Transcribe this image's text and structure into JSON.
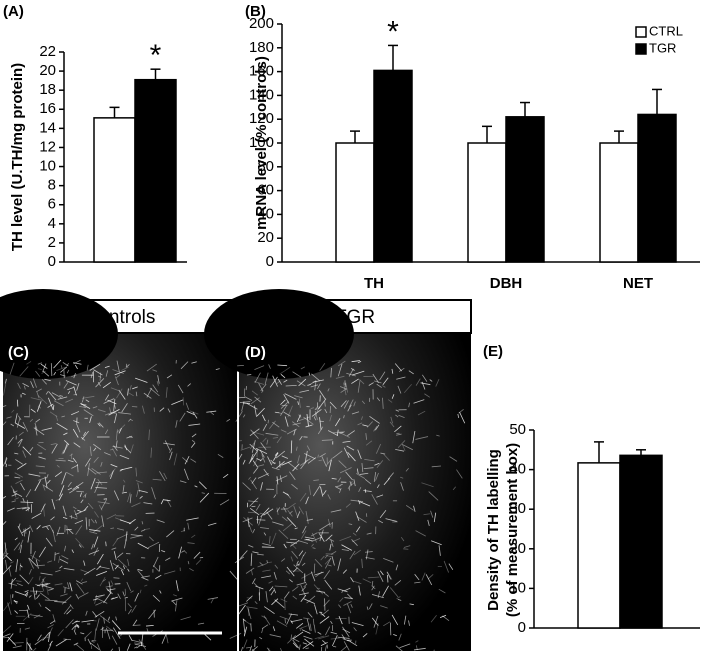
{
  "chart_data": [
    {
      "type": "bar",
      "label": "(A)",
      "ylabel": "TH level (U.TH/mg protein)",
      "values": [
        15.1,
        19.1
      ],
      "errors": [
        1.1,
        1.1
      ],
      "colors": [
        "#ffffff",
        "#000000"
      ],
      "annotation": "*",
      "ylim": [
        0,
        22
      ],
      "yticks": [
        0,
        2,
        4,
        6,
        8,
        10,
        12,
        14,
        16,
        18,
        20,
        22
      ]
    },
    {
      "type": "bar",
      "label": "(B)",
      "ylabel": "mRNA level (% controls)",
      "categories": [
        "TH",
        "DBH",
        "NET"
      ],
      "series": [
        {
          "name": "CTRL",
          "color": "#ffffff",
          "values": [
            100,
            100,
            100
          ],
          "errors": [
            10,
            14,
            10
          ]
        },
        {
          "name": "TGR",
          "color": "#000000",
          "values": [
            161,
            122,
            124
          ],
          "errors": [
            21,
            12,
            21
          ]
        }
      ],
      "annotation": "*",
      "legend": "top-right",
      "ylim": [
        0,
        200
      ],
      "yticks": [
        0,
        20,
        40,
        60,
        80,
        100,
        120,
        140,
        160,
        180,
        200
      ]
    },
    {
      "type": "bar",
      "label": "(E)",
      "ylabel": [
        "Density of TH labelling",
        "(% of  measurement box)"
      ],
      "values": [
        41.7,
        43.6
      ],
      "errors": [
        5.3,
        1.4
      ],
      "colors": [
        "#ffffff",
        "#000000"
      ],
      "ylim": [
        0,
        50
      ],
      "yticks": [
        0,
        10,
        20,
        30,
        40,
        50
      ]
    }
  ],
  "panels": [
    {
      "header": "Controls",
      "label": "(C)"
    },
    {
      "header": "TGR",
      "label": "(D)"
    }
  ]
}
